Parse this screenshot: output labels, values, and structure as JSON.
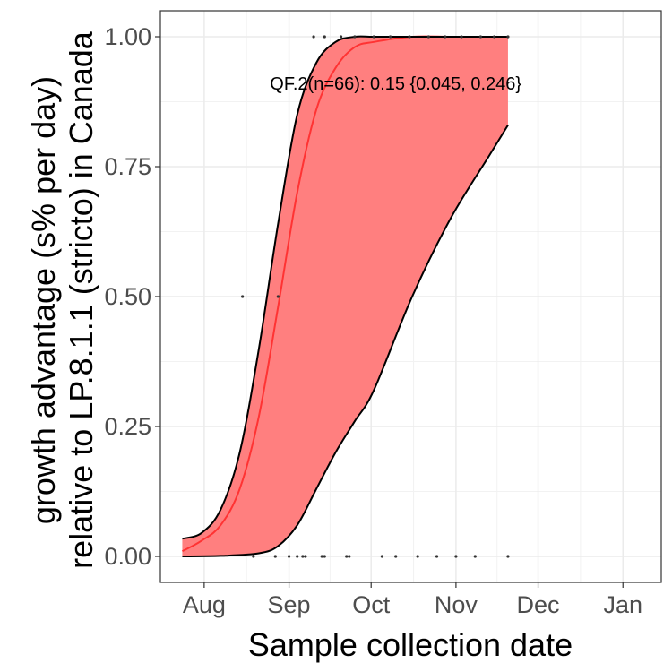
{
  "chart_data": {
    "type": "line",
    "xlabel": "Sample collection date",
    "ylabel_lines": [
      "growth advantage (s% per day)",
      "relative to LP.8.1.1 (stricto) in Canada"
    ],
    "annotation": {
      "text": "QF.2(n=66): 0.15 {0.045, 0.246}",
      "x": "2025-10-10",
      "y": 0.91
    },
    "x_ticks": [
      {
        "label": "Aug",
        "date": "2025-08-01"
      },
      {
        "label": "Sep",
        "date": "2025-09-01"
      },
      {
        "label": "Oct",
        "date": "2025-10-01"
      },
      {
        "label": "Nov",
        "date": "2025-11-01"
      },
      {
        "label": "Dec",
        "date": "2025-12-01"
      },
      {
        "label": "Jan",
        "date": "2026-01-01"
      }
    ],
    "xlim": [
      "2025-07-16",
      "2026-01-15"
    ],
    "ylim": [
      -0.05,
      1.05
    ],
    "y_ticks": [
      {
        "label": "0.00",
        "value": 0.0
      },
      {
        "label": "0.25",
        "value": 0.25
      },
      {
        "label": "0.50",
        "value": 0.5
      },
      {
        "label": "0.75",
        "value": 0.75
      },
      {
        "label": "1.00",
        "value": 1.0
      }
    ],
    "grid": true,
    "colors": {
      "fit": "#ff3333",
      "ribbon": "#ff7f7f",
      "bounds": "#000000",
      "points": "#333333"
    },
    "series": [
      {
        "role": "fit",
        "x": [
          "2025-07-24",
          "2025-07-31",
          "2025-08-07",
          "2025-08-14",
          "2025-08-21",
          "2025-08-28",
          "2025-09-04",
          "2025-09-11",
          "2025-09-18",
          "2025-09-25",
          "2025-10-02",
          "2025-10-16",
          "2025-10-30",
          "2025-11-13",
          "2025-11-20"
        ],
        "y": [
          0.01,
          0.03,
          0.06,
          0.13,
          0.27,
          0.48,
          0.7,
          0.86,
          0.94,
          0.98,
          0.99,
          1.0,
          1.0,
          1.0,
          1.0
        ]
      },
      {
        "role": "upper",
        "x": [
          "2025-07-24",
          "2025-07-31",
          "2025-08-07",
          "2025-08-14",
          "2025-08-21",
          "2025-08-28",
          "2025-09-04",
          "2025-09-11",
          "2025-09-18",
          "2025-09-25",
          "2025-10-02",
          "2025-10-16",
          "2025-10-30",
          "2025-11-13",
          "2025-11-20"
        ],
        "y": [
          0.034,
          0.045,
          0.09,
          0.2,
          0.4,
          0.64,
          0.85,
          0.95,
          0.99,
          1.0,
          1.0,
          1.0,
          1.0,
          1.0,
          1.0
        ]
      },
      {
        "role": "lower",
        "x": [
          "2025-07-24",
          "2025-08-07",
          "2025-08-21",
          "2025-08-28",
          "2025-09-04",
          "2025-09-11",
          "2025-09-18",
          "2025-09-25",
          "2025-10-02",
          "2025-10-16",
          "2025-10-30",
          "2025-11-13",
          "2025-11-20"
        ],
        "y": [
          0.0,
          0.001,
          0.006,
          0.02,
          0.06,
          0.13,
          0.2,
          0.26,
          0.32,
          0.5,
          0.65,
          0.77,
          0.83
        ]
      },
      {
        "role": "points",
        "x": [
          "2025-08-19",
          "2025-08-27",
          "2025-09-01",
          "2025-09-04",
          "2025-09-06",
          "2025-09-07",
          "2025-09-13",
          "2025-09-14",
          "2025-09-22",
          "2025-09-23",
          "2025-10-05",
          "2025-10-10",
          "2025-10-18",
          "2025-10-25",
          "2025-11-01",
          "2025-11-08",
          "2025-11-20",
          "2025-09-10",
          "2025-09-14",
          "2025-09-20",
          "2025-09-25",
          "2025-10-02",
          "2025-10-08",
          "2025-10-15",
          "2025-10-22",
          "2025-10-28",
          "2025-11-03",
          "2025-11-10",
          "2025-11-15",
          "2025-11-20",
          "2025-08-15",
          "2025-08-28"
        ],
        "y": [
          0,
          0,
          0,
          0,
          0,
          0,
          0,
          0,
          0,
          0,
          0,
          0,
          0,
          0,
          0,
          0,
          0,
          1,
          1,
          1,
          1,
          1,
          1,
          1,
          1,
          1,
          1,
          1,
          1,
          1,
          0.5,
          0.5
        ]
      }
    ]
  }
}
